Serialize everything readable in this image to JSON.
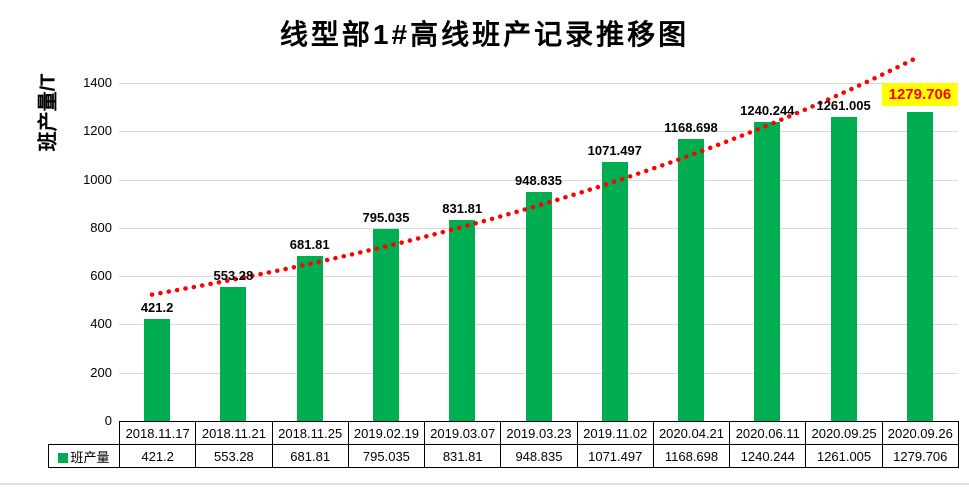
{
  "title": "线型部1#高线班产记录推移图",
  "chart_data": {
    "type": "bar",
    "title": "线型部1#高线班产记录推移图",
    "xlabel": "",
    "ylabel": "班产量/T",
    "ylim": [
      0,
      1400
    ],
    "yticks": [
      0,
      200,
      400,
      600,
      800,
      1000,
      1200,
      1400
    ],
    "grid": true,
    "categories": [
      "2018.11.17",
      "2018.11.21",
      "2018.11.25",
      "2019.02.19",
      "2019.03.07",
      "2019.03.23",
      "2019.11.02",
      "2020.04.21",
      "2020.06.11",
      "2020.09.25",
      "2020.09.26"
    ],
    "series": [
      {
        "name": "班产量",
        "values": [
          421.2,
          553.28,
          681.81,
          795.035,
          831.81,
          948.835,
          1071.497,
          1168.698,
          1240.244,
          1261.005,
          1279.706
        ],
        "labels": [
          "421.2",
          "553.28",
          "681.81",
          "795.035",
          "831.81",
          "948.835",
          "1071.497",
          "1168.698",
          "1240.244",
          "1261.005",
          "1279.706"
        ]
      }
    ],
    "bar_color": "#00AD51",
    "trendline": {
      "shape": "exponential",
      "style": "dotted",
      "color": "#FF0000"
    },
    "data_labels": true,
    "highlight_last_label": {
      "text_color": "#FF0000",
      "background": "#FFFF00"
    },
    "legend": {
      "label": "班产量",
      "position": "table-left"
    }
  },
  "colors": {
    "bar": "#00AD51",
    "trend": "#FF0000",
    "gridline": "#d9d9d9",
    "highlight_bg": "#FFFF00",
    "highlight_text": "#FF0000"
  }
}
